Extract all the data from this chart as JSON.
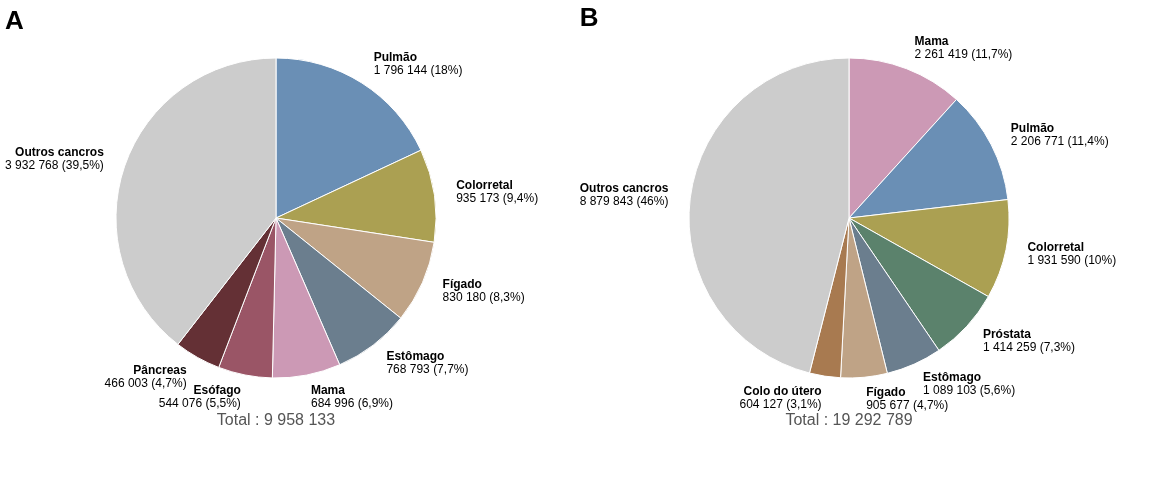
{
  "chart_data": [
    {
      "type": "pie",
      "title": "A",
      "categories": [
        "Pulmão",
        "Colorretal",
        "Fígado",
        "Estômago",
        "Mama",
        "Esófago",
        "Pâncreas",
        "Outros cancros"
      ],
      "values": [
        1796144,
        935173,
        830180,
        768793,
        684996,
        544076,
        466003,
        3932768
      ],
      "value_labels": [
        "1 796 144 (18%)",
        "935 173 (9,4%)",
        "830 180 (8,3%)",
        "768 793 (7,7%)",
        "684 996 (6,9%)",
        "544 076 (5,5%)",
        "466 003 (4,7%)",
        "3 932 768 (39,5%)"
      ],
      "colors": [
        "#6a8fb5",
        "#aba052",
        "#bfa386",
        "#6b7e8e",
        "#cc99b5",
        "#9a5566",
        "#643035",
        "#cccccc"
      ],
      "annotations": [
        "Total : 9 958 133"
      ],
      "legend": false
    },
    {
      "type": "pie",
      "title": "B",
      "categories": [
        "Mama",
        "Pulmão",
        "Colorretal",
        "Próstata",
        "Estômago",
        "Fígado",
        "Colo do útero",
        "Outros cancros"
      ],
      "values": [
        2261419,
        2206771,
        1931590,
        1414259,
        1089103,
        905677,
        604127,
        8879843
      ],
      "value_labels": [
        "2 261 419 (11,7%)",
        "2 206 771 (11,4%)",
        "1 931 590 (10%)",
        "1 414 259 (7,3%)",
        "1 089 103 (5,6%)",
        "905 677 (4,7%)",
        "604 127 (3,1%)",
        "8 879 843 (46%)"
      ],
      "colors": [
        "#cc99b5",
        "#6a8fb5",
        "#aba052",
        "#5b826c",
        "#6b7e8e",
        "#bfa386",
        "#a87a50",
        "#cccccc"
      ],
      "annotations": [
        "Total : 19 292 789"
      ],
      "legend": false
    }
  ]
}
